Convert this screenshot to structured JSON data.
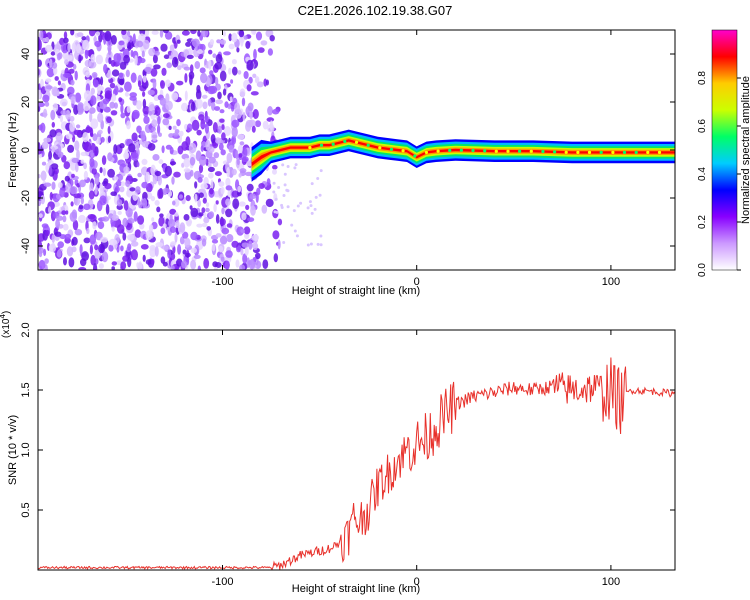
{
  "figure_title": "C2E1.2026.102.19.38.G07",
  "chart_data": [
    {
      "type": "heatmap",
      "title": "C2E1.2026.102.19.38.G07",
      "xlabel": "Height of straight line (km)",
      "ylabel": "Frequency (Hz)",
      "xlim": [
        -195,
        133
      ],
      "ylim": [
        -50,
        50
      ],
      "xticks": [
        -100,
        0,
        100
      ],
      "yticks": [
        -40,
        -20,
        0,
        20,
        40
      ],
      "noise_region_x": [
        -195,
        -74
      ],
      "ridge": {
        "x": [
          -85,
          -80,
          -75,
          -70,
          -65,
          -60,
          -55,
          -50,
          -45,
          -40,
          -35,
          -30,
          -25,
          -20,
          -15,
          -10,
          -5,
          0,
          5,
          10,
          20,
          40,
          60,
          80,
          100,
          120,
          133
        ],
        "freq": [
          -6,
          -3,
          -1,
          0,
          1,
          1,
          1,
          2,
          2,
          3,
          4,
          3,
          2,
          1,
          0.5,
          0,
          -0.5,
          -3,
          -1,
          -0.5,
          0,
          -0.5,
          -0.5,
          -1,
          -1,
          -1,
          -1
        ]
      },
      "colorbar": {
        "label": "Normalized spectral amplitude",
        "range": [
          0,
          1
        ],
        "ticks": [
          "0.0",
          "0.2",
          "0.4",
          "0.6",
          "0.8"
        ],
        "tick_values": [
          0.0,
          0.2,
          0.4,
          0.6,
          0.8
        ],
        "colors": [
          "#ffffff",
          "#cc99ff",
          "#8800ff",
          "#0000ff",
          "#00ccff",
          "#00ff66",
          "#ccff00",
          "#ffcc00",
          "#ff0000",
          "#ff00cc"
        ]
      }
    },
    {
      "type": "line",
      "xlabel": "Height of straight line (km)",
      "ylabel": "SNR (10 * v/v)",
      "y_multiplier_label": "(x10",
      "y_multiplier_exp": "4",
      "y_multiplier_close": ")",
      "xlim": [
        -195,
        133
      ],
      "ylim": [
        0,
        2.0
      ],
      "xticks": [
        -100,
        0,
        100
      ],
      "yticks": [
        "0.5",
        "1.0",
        "1.5",
        "2.0"
      ],
      "ytick_values": [
        0.5,
        1.0,
        1.5,
        2.0
      ],
      "series": [
        {
          "name": "SNR",
          "color": "#e8312b",
          "x": [
            -195,
            -75,
            -70,
            -65,
            -60,
            -55,
            -50,
            -45,
            -40,
            -35,
            -32,
            -30,
            -25,
            -20,
            -15,
            -10,
            -5,
            0,
            5,
            10,
            15,
            20,
            30,
            40,
            50,
            60,
            70,
            80,
            90,
            100,
            105,
            110,
            120,
            133
          ],
          "y": [
            0.02,
            0.02,
            0.04,
            0.08,
            0.12,
            0.14,
            0.16,
            0.18,
            0.22,
            0.3,
            0.45,
            0.4,
            0.5,
            0.7,
            0.8,
            0.9,
            1.0,
            1.05,
            1.1,
            1.2,
            1.3,
            1.38,
            1.45,
            1.48,
            1.52,
            1.5,
            1.53,
            1.5,
            1.52,
            1.5,
            1.4,
            1.5,
            1.49,
            1.47
          ]
        }
      ]
    }
  ]
}
